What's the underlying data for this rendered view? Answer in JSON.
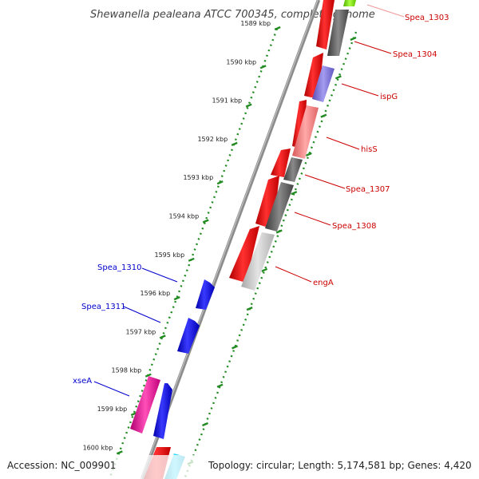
{
  "map": {
    "title": "Shewanella pealeana ATCC 700345, complete genome",
    "accession": "Accession: NC_009901",
    "summary": "Topology: circular; Length: 5,174,581 bp; Genes: 4,420"
  },
  "ticks": [
    "1589 kbp",
    "1590 kbp",
    "1591 kbp",
    "1592 kbp",
    "1593 kbp",
    "1594 kbp",
    "1595 kbp",
    "1596 kbp",
    "1597 kbp",
    "1598 kbp",
    "1599 kbp",
    "1600 kbp"
  ],
  "genes": {
    "forward": [
      "Spea_1303",
      "Spea_1304",
      "ispG",
      "hisS",
      "Spea_1307",
      "Spea_1308",
      "engA"
    ],
    "reverse": [
      "Spea_1310",
      "Spea_1311",
      "xseA"
    ]
  },
  "colors": {
    "forward_label": "#cc0000",
    "reverse_label": "#0000cc",
    "cds_forward": "#ff0000",
    "cds_reverse": "#0000ff",
    "backbone": "#808080",
    "tick_dots": "#228b22"
  }
}
